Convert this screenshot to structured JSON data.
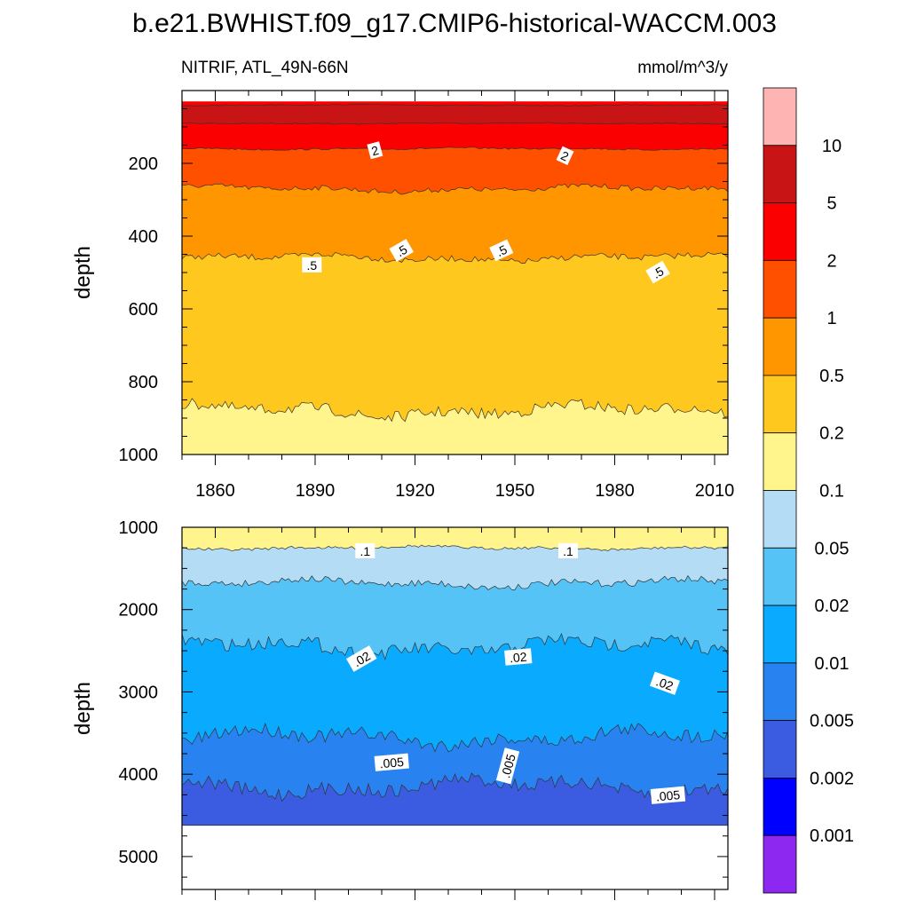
{
  "title": "b.e21.BWHIST.f09_g17.CMIP6-historical-WACCM.003",
  "subtitle_left": "NITRIF, ATL_49N-66N",
  "subtitle_right": "mmol/m^3/y",
  "chart_data": {
    "type": "contour",
    "variable": "NITRIF",
    "region": "ATL_49N-66N",
    "units": "mmol/m^3/y",
    "x": {
      "range": [
        1850,
        2014
      ],
      "ticks": [
        1860,
        1890,
        1920,
        1950,
        1980,
        2010
      ]
    },
    "colorbar": {
      "levels": [
        0.001,
        0.002,
        0.005,
        0.01,
        0.02,
        0.05,
        0.1,
        0.2,
        0.5,
        1,
        2,
        5,
        10
      ],
      "labels": [
        "0.001",
        "0.002",
        "0.005",
        "0.01",
        "0.02",
        "0.05",
        "0.1",
        "0.2",
        "0.5",
        "1",
        "2",
        "5",
        "10"
      ],
      "colors": [
        "#8c28f0",
        "#0000ff",
        "#3b5be0",
        "#2882f0",
        "#0aaaff",
        "#55c3f5",
        "#b4dcf5",
        "#fff58c",
        "#ffc81e",
        "#ff9600",
        "#ff5000",
        "#fa0000",
        "#c81414",
        "#ffb4b4"
      ]
    },
    "panels": [
      {
        "name": "upper",
        "ylabel": "depth",
        "ylim": [
          0,
          1000
        ],
        "yticks": [
          200,
          400,
          600,
          800,
          1000
        ],
        "show_xticklabels": true,
        "bands": [
          {
            "fill": "#fa0000",
            "base_depth": 30,
            "amp": 0
          },
          {
            "fill": "#c81414",
            "base_depth": 40,
            "amp": 2
          },
          {
            "fill": "#fa0000",
            "base_depth": 90,
            "amp": 2
          },
          {
            "fill": "#ff5000",
            "base_depth": 160,
            "amp": 3,
            "label": "2"
          },
          {
            "fill": "#ff9600",
            "base_depth": 270,
            "amp": 10
          },
          {
            "fill": "#ffc81e",
            "base_depth": 460,
            "amp": 12,
            "label": ".5"
          },
          {
            "fill": "#fff58c",
            "base_depth": 880,
            "amp": 22
          }
        ],
        "contour_labels": [
          {
            "text": "2",
            "year": 1908,
            "depth": 165,
            "angle": -15
          },
          {
            "text": "2",
            "year": 1965,
            "depth": 180,
            "angle": 25
          },
          {
            "text": ".5",
            "year": 1889,
            "depth": 480,
            "angle": 0
          },
          {
            "text": ".5",
            "year": 1916,
            "depth": 440,
            "angle": -30
          },
          {
            "text": ".5",
            "year": 1946,
            "depth": 440,
            "angle": -25
          },
          {
            "text": ".5",
            "year": 1993,
            "depth": 500,
            "angle": -30
          }
        ]
      },
      {
        "name": "lower",
        "ylabel": "depth",
        "ylim": [
          1000,
          5400
        ],
        "yticks": [
          1000,
          2000,
          3000,
          4000,
          5000
        ],
        "show_xticklabels": false,
        "bottom_depth": 4620,
        "bands": [
          {
            "fill": "#fff58c",
            "base_depth": 1000,
            "amp": 0
          },
          {
            "fill": "#b4dcf5",
            "base_depth": 1250,
            "amp": 25,
            "label": ".1"
          },
          {
            "fill": "#55c3f5",
            "base_depth": 1680,
            "amp": 60
          },
          {
            "fill": "#0aaaff",
            "base_depth": 2450,
            "amp": 120,
            "label": ".02"
          },
          {
            "fill": "#2882f0",
            "base_depth": 3550,
            "amp": 120
          },
          {
            "fill": "#3b5be0",
            "base_depth": 4150,
            "amp": 120,
            "label": ".005"
          }
        ],
        "contour_labels": [
          {
            "text": ".1",
            "year": 1905,
            "depth": 1290,
            "angle": 0
          },
          {
            "text": ".1",
            "year": 1966,
            "depth": 1290,
            "angle": 0
          },
          {
            "text": ".02",
            "year": 1904,
            "depth": 2600,
            "angle": -30
          },
          {
            "text": ".02",
            "year": 1951,
            "depth": 2580,
            "angle": -5
          },
          {
            "text": ".02",
            "year": 1995,
            "depth": 2900,
            "angle": 20
          },
          {
            "text": ".005",
            "year": 1913,
            "depth": 3860,
            "angle": -5
          },
          {
            "text": ".005",
            "year": 1948,
            "depth": 3900,
            "angle": -75
          },
          {
            "text": ".005",
            "year": 1996,
            "depth": 4260,
            "angle": -5
          }
        ]
      }
    ]
  }
}
